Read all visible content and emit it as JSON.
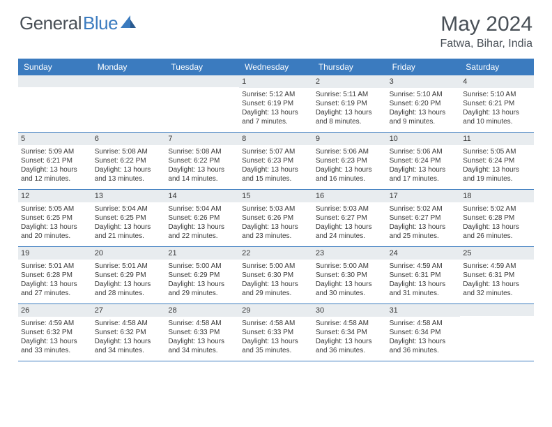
{
  "brand": {
    "name_gray": "General",
    "name_blue": "Blue"
  },
  "title": "May 2024",
  "location": "Fatwa, Bihar, India",
  "colors": {
    "header_bg": "#3b7bbf",
    "header_text": "#ffffff",
    "daynum_bg": "#e8ecef",
    "text": "#373737",
    "border": "#3b7bbf",
    "page_bg": "#ffffff"
  },
  "weekdays": [
    "Sunday",
    "Monday",
    "Tuesday",
    "Wednesday",
    "Thursday",
    "Friday",
    "Saturday"
  ],
  "cells": [
    {
      "day": "",
      "sunrise": "",
      "sunset": "",
      "daylight": ""
    },
    {
      "day": "",
      "sunrise": "",
      "sunset": "",
      "daylight": ""
    },
    {
      "day": "",
      "sunrise": "",
      "sunset": "",
      "daylight": ""
    },
    {
      "day": "1",
      "sunrise": "Sunrise: 5:12 AM",
      "sunset": "Sunset: 6:19 PM",
      "daylight": "Daylight: 13 hours and 7 minutes."
    },
    {
      "day": "2",
      "sunrise": "Sunrise: 5:11 AM",
      "sunset": "Sunset: 6:19 PM",
      "daylight": "Daylight: 13 hours and 8 minutes."
    },
    {
      "day": "3",
      "sunrise": "Sunrise: 5:10 AM",
      "sunset": "Sunset: 6:20 PM",
      "daylight": "Daylight: 13 hours and 9 minutes."
    },
    {
      "day": "4",
      "sunrise": "Sunrise: 5:10 AM",
      "sunset": "Sunset: 6:21 PM",
      "daylight": "Daylight: 13 hours and 10 minutes."
    },
    {
      "day": "5",
      "sunrise": "Sunrise: 5:09 AM",
      "sunset": "Sunset: 6:21 PM",
      "daylight": "Daylight: 13 hours and 12 minutes."
    },
    {
      "day": "6",
      "sunrise": "Sunrise: 5:08 AM",
      "sunset": "Sunset: 6:22 PM",
      "daylight": "Daylight: 13 hours and 13 minutes."
    },
    {
      "day": "7",
      "sunrise": "Sunrise: 5:08 AM",
      "sunset": "Sunset: 6:22 PM",
      "daylight": "Daylight: 13 hours and 14 minutes."
    },
    {
      "day": "8",
      "sunrise": "Sunrise: 5:07 AM",
      "sunset": "Sunset: 6:23 PM",
      "daylight": "Daylight: 13 hours and 15 minutes."
    },
    {
      "day": "9",
      "sunrise": "Sunrise: 5:06 AM",
      "sunset": "Sunset: 6:23 PM",
      "daylight": "Daylight: 13 hours and 16 minutes."
    },
    {
      "day": "10",
      "sunrise": "Sunrise: 5:06 AM",
      "sunset": "Sunset: 6:24 PM",
      "daylight": "Daylight: 13 hours and 17 minutes."
    },
    {
      "day": "11",
      "sunrise": "Sunrise: 5:05 AM",
      "sunset": "Sunset: 6:24 PM",
      "daylight": "Daylight: 13 hours and 19 minutes."
    },
    {
      "day": "12",
      "sunrise": "Sunrise: 5:05 AM",
      "sunset": "Sunset: 6:25 PM",
      "daylight": "Daylight: 13 hours and 20 minutes."
    },
    {
      "day": "13",
      "sunrise": "Sunrise: 5:04 AM",
      "sunset": "Sunset: 6:25 PM",
      "daylight": "Daylight: 13 hours and 21 minutes."
    },
    {
      "day": "14",
      "sunrise": "Sunrise: 5:04 AM",
      "sunset": "Sunset: 6:26 PM",
      "daylight": "Daylight: 13 hours and 22 minutes."
    },
    {
      "day": "15",
      "sunrise": "Sunrise: 5:03 AM",
      "sunset": "Sunset: 6:26 PM",
      "daylight": "Daylight: 13 hours and 23 minutes."
    },
    {
      "day": "16",
      "sunrise": "Sunrise: 5:03 AM",
      "sunset": "Sunset: 6:27 PM",
      "daylight": "Daylight: 13 hours and 24 minutes."
    },
    {
      "day": "17",
      "sunrise": "Sunrise: 5:02 AM",
      "sunset": "Sunset: 6:27 PM",
      "daylight": "Daylight: 13 hours and 25 minutes."
    },
    {
      "day": "18",
      "sunrise": "Sunrise: 5:02 AM",
      "sunset": "Sunset: 6:28 PM",
      "daylight": "Daylight: 13 hours and 26 minutes."
    },
    {
      "day": "19",
      "sunrise": "Sunrise: 5:01 AM",
      "sunset": "Sunset: 6:28 PM",
      "daylight": "Daylight: 13 hours and 27 minutes."
    },
    {
      "day": "20",
      "sunrise": "Sunrise: 5:01 AM",
      "sunset": "Sunset: 6:29 PM",
      "daylight": "Daylight: 13 hours and 28 minutes."
    },
    {
      "day": "21",
      "sunrise": "Sunrise: 5:00 AM",
      "sunset": "Sunset: 6:29 PM",
      "daylight": "Daylight: 13 hours and 29 minutes."
    },
    {
      "day": "22",
      "sunrise": "Sunrise: 5:00 AM",
      "sunset": "Sunset: 6:30 PM",
      "daylight": "Daylight: 13 hours and 29 minutes."
    },
    {
      "day": "23",
      "sunrise": "Sunrise: 5:00 AM",
      "sunset": "Sunset: 6:30 PM",
      "daylight": "Daylight: 13 hours and 30 minutes."
    },
    {
      "day": "24",
      "sunrise": "Sunrise: 4:59 AM",
      "sunset": "Sunset: 6:31 PM",
      "daylight": "Daylight: 13 hours and 31 minutes."
    },
    {
      "day": "25",
      "sunrise": "Sunrise: 4:59 AM",
      "sunset": "Sunset: 6:31 PM",
      "daylight": "Daylight: 13 hours and 32 minutes."
    },
    {
      "day": "26",
      "sunrise": "Sunrise: 4:59 AM",
      "sunset": "Sunset: 6:32 PM",
      "daylight": "Daylight: 13 hours and 33 minutes."
    },
    {
      "day": "27",
      "sunrise": "Sunrise: 4:58 AM",
      "sunset": "Sunset: 6:32 PM",
      "daylight": "Daylight: 13 hours and 34 minutes."
    },
    {
      "day": "28",
      "sunrise": "Sunrise: 4:58 AM",
      "sunset": "Sunset: 6:33 PM",
      "daylight": "Daylight: 13 hours and 34 minutes."
    },
    {
      "day": "29",
      "sunrise": "Sunrise: 4:58 AM",
      "sunset": "Sunset: 6:33 PM",
      "daylight": "Daylight: 13 hours and 35 minutes."
    },
    {
      "day": "30",
      "sunrise": "Sunrise: 4:58 AM",
      "sunset": "Sunset: 6:34 PM",
      "daylight": "Daylight: 13 hours and 36 minutes."
    },
    {
      "day": "31",
      "sunrise": "Sunrise: 4:58 AM",
      "sunset": "Sunset: 6:34 PM",
      "daylight": "Daylight: 13 hours and 36 minutes."
    },
    {
      "day": "",
      "sunrise": "",
      "sunset": "",
      "daylight": ""
    }
  ]
}
